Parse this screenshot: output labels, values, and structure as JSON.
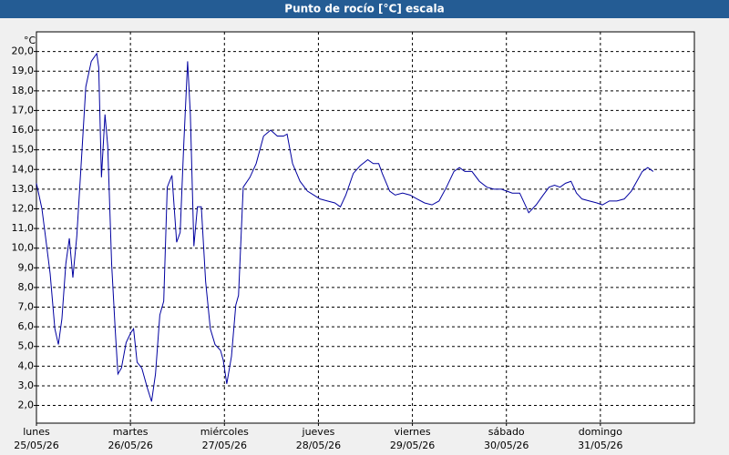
{
  "chart_data": {
    "type": "line",
    "title": "Punto de rocío [°C] escala",
    "y_unit": "°C",
    "xlim": [
      0,
      168
    ],
    "xticks": [
      {
        "value": 0,
        "label": "lunes",
        "date": "25/05/26"
      },
      {
        "value": 24,
        "label": "martes",
        "date": "26/05/26"
      },
      {
        "value": 48,
        "label": "miércoles",
        "date": "27/05/26"
      },
      {
        "value": 72,
        "label": "jueves",
        "date": "28/05/26"
      },
      {
        "value": 96,
        "label": "viernes",
        "date": "29/05/26"
      },
      {
        "value": 120,
        "label": "sábado",
        "date": "30/05/26"
      },
      {
        "value": 144,
        "label": "domingo",
        "date": "31/05/26"
      }
    ],
    "ylim": [
      1.1,
      21.0
    ],
    "yticks": [
      {
        "value": 2,
        "label": "2,0"
      },
      {
        "value": 3,
        "label": "3,0"
      },
      {
        "value": 4,
        "label": "4,0"
      },
      {
        "value": 5,
        "label": "5,0"
      },
      {
        "value": 6,
        "label": "6,0"
      },
      {
        "value": 7,
        "label": "7,0"
      },
      {
        "value": 8,
        "label": "8,0"
      },
      {
        "value": 9,
        "label": "9,0"
      },
      {
        "value": 10,
        "label": "10,0"
      },
      {
        "value": 11,
        "label": "11,0"
      },
      {
        "value": 12,
        "label": "12,0"
      },
      {
        "value": 13,
        "label": "13,0"
      },
      {
        "value": 14,
        "label": "14,0"
      },
      {
        "value": 15,
        "label": "15,0"
      },
      {
        "value": 16,
        "label": "16,0"
      },
      {
        "value": 17,
        "label": "17,0"
      },
      {
        "value": 18,
        "label": "18,0"
      },
      {
        "value": 19,
        "label": "19,0"
      },
      {
        "value": 20,
        "label": "20,0"
      }
    ],
    "grid": true,
    "color": "#0000a0",
    "x": [
      0,
      1.4,
      2.3,
      3.5,
      4.7,
      5.6,
      6.5,
      7.5,
      8.4,
      9.3,
      10.3,
      11.7,
      12.6,
      14,
      15.4,
      15.9,
      16.6,
      17.5,
      18.2,
      19.2,
      20.1,
      20.8,
      21.7,
      22.9,
      24.1,
      24.8,
      25.7,
      26.9,
      28.3,
      29.4,
      30.4,
      31.5,
      32.5,
      33.4,
      34.6,
      35.8,
      36.7,
      37.6,
      38.6,
      39.3,
      40.2,
      41.1,
      42.1,
      43.2,
      44.4,
      45.6,
      47,
      47.7,
      48.6,
      49.8,
      50.9,
      51.6,
      52.8,
      54.5,
      56.1,
      58,
      59.8,
      61.5,
      63.1,
      64,
      65.4,
      67.3,
      69.2,
      70.8,
      72.4,
      74.3,
      76.2,
      77.6,
      79,
      80.9,
      82.7,
      84.6,
      86,
      87.4,
      88.3,
      90.2,
      91.6,
      93.5,
      95.4,
      97.2,
      99.1,
      101,
      102.8,
      104.7,
      106.6,
      108,
      109.4,
      111.2,
      113.1,
      115,
      116.8,
      118.7,
      120.1,
      121.5,
      123.4,
      124.8,
      125.7,
      127.6,
      129.4,
      130.9,
      132.3,
      133.7,
      135.1,
      136.5,
      137.9,
      139.3,
      141.2,
      143.1,
      144.5,
      146.3,
      148.2,
      150.1,
      151.9,
      153.3,
      154.7,
      156.1,
      157.5
    ],
    "values": [
      13.3,
      12.0,
      10.6,
      8.7,
      5.9,
      5.1,
      6.4,
      9.2,
      10.5,
      8.5,
      10.6,
      15.2,
      18.2,
      19.5,
      19.9,
      19.2,
      13.6,
      16.8,
      15.2,
      9.2,
      5.9,
      3.6,
      3.9,
      5.2,
      5.7,
      5.9,
      4.2,
      3.9,
      2.9,
      2.2,
      3.6,
      6.6,
      7.3,
      13.1,
      13.7,
      10.3,
      10.8,
      15.2,
      19.5,
      16.8,
      10.1,
      12.1,
      12.1,
      8.3,
      5.9,
      5.1,
      4.8,
      4.3,
      3.1,
      4.5,
      7.1,
      7.6,
      13.1,
      13.6,
      14.3,
      15.7,
      16.0,
      15.7,
      15.7,
      15.8,
      14.3,
      13.4,
      12.9,
      12.7,
      12.5,
      12.4,
      12.3,
      12.1,
      12.7,
      13.8,
      14.2,
      14.5,
      14.3,
      14.3,
      13.8,
      12.9,
      12.7,
      12.8,
      12.7,
      12.5,
      12.3,
      12.2,
      12.4,
      13.1,
      13.9,
      14.1,
      13.9,
      13.9,
      13.4,
      13.1,
      13.0,
      13.0,
      12.9,
      12.8,
      12.8,
      12.2,
      11.8,
      12.2,
      12.7,
      13.1,
      13.2,
      13.1,
      13.3,
      13.4,
      12.8,
      12.5,
      12.4,
      12.3,
      12.2,
      12.4,
      12.4,
      12.5,
      12.9,
      13.4,
      13.9,
      14.1,
      13.9
    ]
  }
}
